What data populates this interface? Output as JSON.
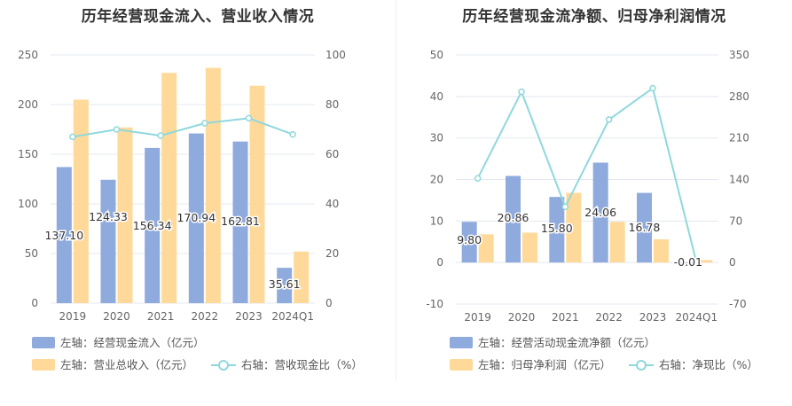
{
  "chart_data": [
    {
      "type": "bar",
      "title": "历年经营现金流入、营业收入情况",
      "categories": [
        "2019",
        "2020",
        "2021",
        "2022",
        "2023",
        "2024Q1"
      ],
      "left_axis": {
        "ylim": [
          0,
          250
        ],
        "ticks": [
          "0",
          "50",
          "100",
          "150",
          "200",
          "250"
        ]
      },
      "right_axis": {
        "ylim": [
          0,
          100
        ],
        "ticks": [
          "0",
          "20",
          "40",
          "60",
          "80",
          "100"
        ]
      },
      "series": [
        {
          "name": "左轴：经营现金流入（亿元）",
          "kind": "bar",
          "axis": "left",
          "color": "#8faadc",
          "values": [
            137.1,
            124.33,
            156.34,
            170.94,
            162.81,
            35.61
          ],
          "labels": [
            "137.10",
            "124.33",
            "156.34",
            "170.94",
            "162.81",
            "35.61"
          ]
        },
        {
          "name": "左轴：营业总收入（亿元）",
          "kind": "bar",
          "axis": "left",
          "color": "#ffd99a",
          "values": [
            205,
            177,
            232,
            237,
            219,
            52
          ]
        },
        {
          "name": "右轴：营收现金比（%）",
          "kind": "line",
          "axis": "right",
          "color": "#8fd8dc",
          "values": [
            67,
            70,
            67.5,
            72.5,
            74.5,
            68
          ]
        }
      ],
      "grid": true,
      "legend_position": "bottom-left"
    },
    {
      "type": "bar",
      "title": "历年经营现金流净额、归母净利润情况",
      "categories": [
        "2019",
        "2020",
        "2021",
        "2022",
        "2023",
        "2024Q1"
      ],
      "left_axis": {
        "ylim": [
          -10,
          50
        ],
        "ticks": [
          "-10",
          "0",
          "10",
          "20",
          "30",
          "40",
          "50"
        ]
      },
      "right_axis": {
        "ylim": [
          -70,
          350
        ],
        "ticks": [
          "-70",
          "0",
          "70",
          "140",
          "210",
          "280",
          "350"
        ]
      },
      "series": [
        {
          "name": "左轴：经营活动现金流净额（亿元）",
          "kind": "bar",
          "axis": "left",
          "color": "#8faadc",
          "values": [
            9.8,
            20.86,
            15.8,
            24.06,
            16.78,
            -0.01
          ],
          "labels": [
            "9.80",
            "20.86",
            "15.80",
            "24.06",
            "16.78",
            "-0.01"
          ]
        },
        {
          "name": "左轴：归母净利润（亿元）",
          "kind": "bar",
          "axis": "left",
          "color": "#ffd99a",
          "values": [
            6.8,
            7.2,
            16.8,
            9.8,
            5.6,
            0.6
          ]
        },
        {
          "name": "右轴：净现比（%）",
          "kind": "line",
          "axis": "right",
          "color": "#8fd8dc",
          "values": [
            142,
            288,
            94,
            241,
            294,
            0
          ]
        }
      ],
      "grid": true,
      "legend_position": "bottom-left"
    }
  ]
}
